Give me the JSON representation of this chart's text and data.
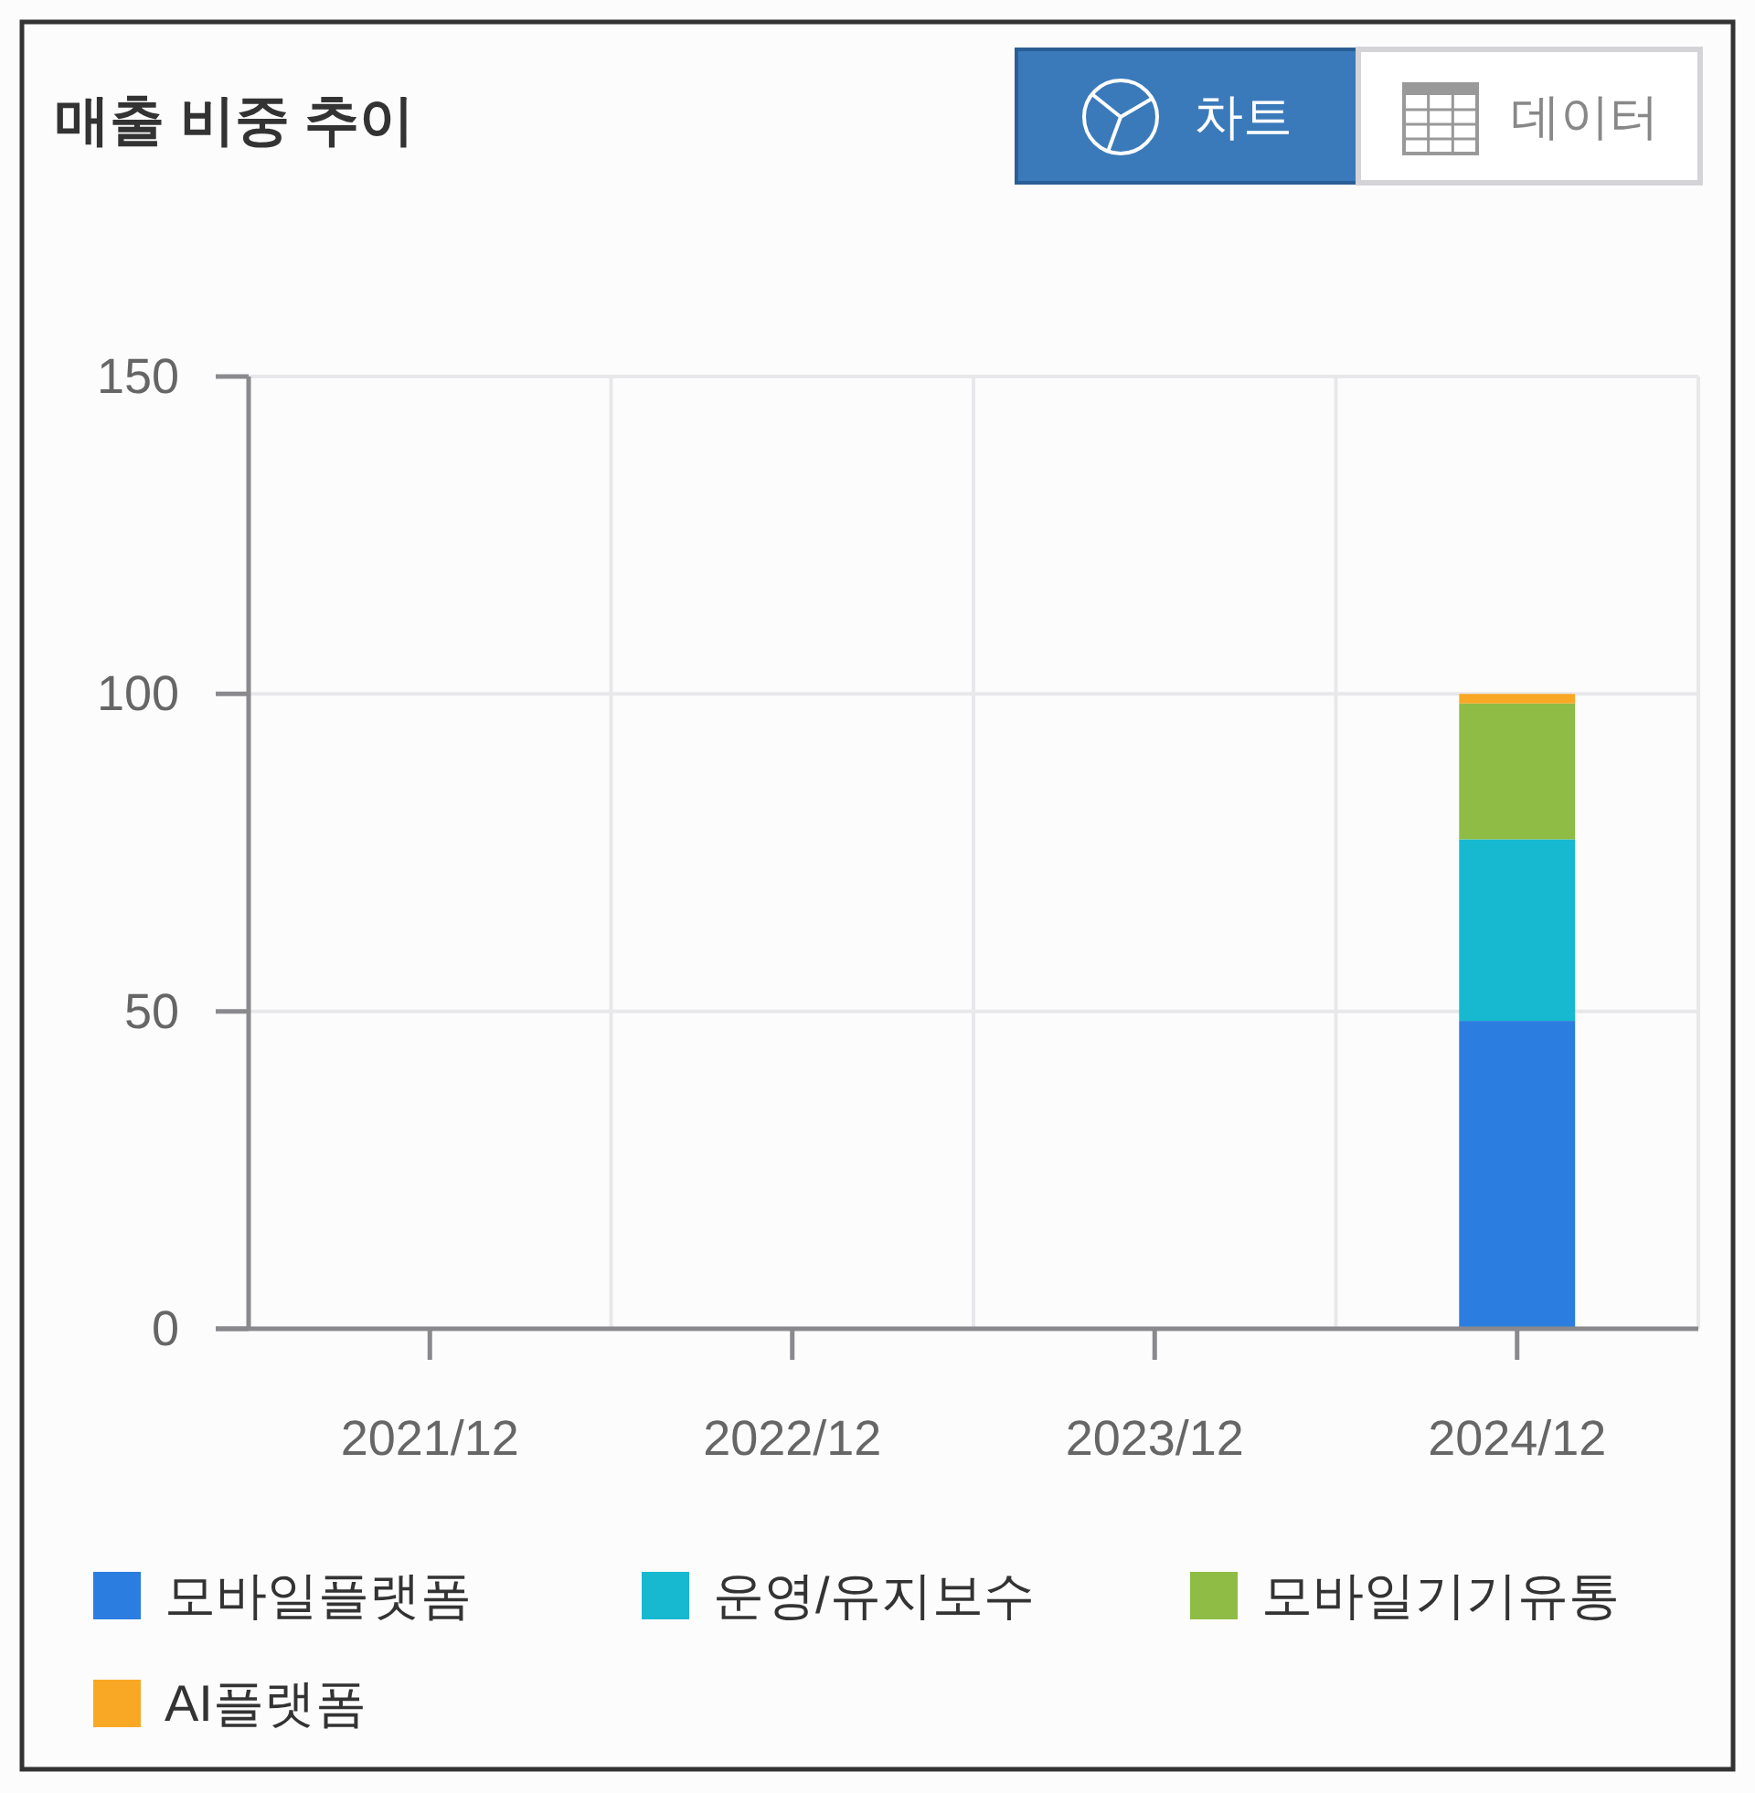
{
  "chart_data": {
    "type": "bar",
    "title": "매출 비중 추이",
    "categories": [
      "2021/12",
      "2022/12",
      "2023/12",
      "2024/12"
    ],
    "series": [
      {
        "name": "모바일플랫폼",
        "color": "#2b7de0",
        "values": [
          null,
          null,
          null,
          48.5
        ]
      },
      {
        "name": "운영/유지보수",
        "color": "#16b9cf",
        "values": [
          null,
          null,
          null,
          28.6
        ]
      },
      {
        "name": "모바일기기유통",
        "color": "#8fbc45",
        "values": [
          null,
          null,
          null,
          21.4
        ]
      },
      {
        "name": "AI플랫폼",
        "color": "#f9a825",
        "values": [
          null,
          null,
          null,
          1.5
        ]
      }
    ],
    "stacked": true,
    "ylim": [
      0,
      150
    ],
    "yticks": [
      0,
      50,
      100,
      150
    ],
    "grid": true,
    "legend": "bottom",
    "annotations": [
      "차트",
      "데이터"
    ]
  }
}
